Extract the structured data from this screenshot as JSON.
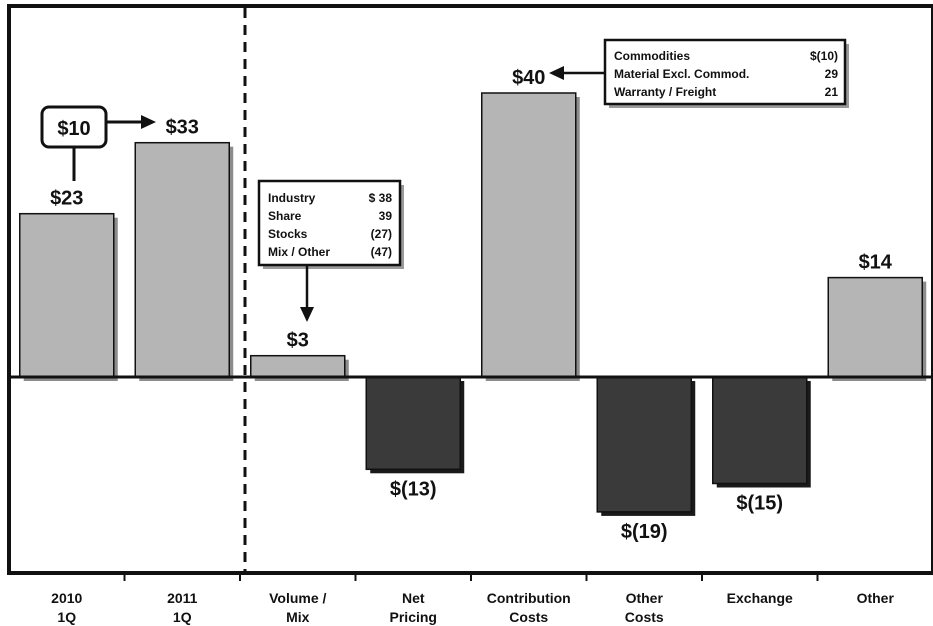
{
  "chart_data": {
    "type": "bar",
    "categories": [
      [
        "2010",
        "1Q"
      ],
      [
        "2011",
        "1Q"
      ],
      [
        "Volume /",
        "Mix"
      ],
      [
        "Net",
        "Pricing"
      ],
      [
        "Contribution",
        "Costs"
      ],
      [
        "Other",
        "Costs"
      ],
      [
        "Exchange"
      ],
      [
        "Other"
      ]
    ],
    "values": [
      23,
      33,
      3,
      -13,
      40,
      -19,
      -15,
      14
    ],
    "value_labels": [
      "$23",
      "$33",
      "$3",
      "$(13)",
      "$40",
      "$(19)",
      "$(15)",
      "$14"
    ],
    "colors": {
      "positive": "#b5b5b5",
      "negative": "#3a3a3a"
    },
    "grid": false,
    "legend": "none",
    "annotations": {
      "change": {
        "label": "$10"
      },
      "volume_mix_box": {
        "rows": [
          {
            "name": "Industry",
            "value": "$ 38"
          },
          {
            "name": "Share",
            "value": "39"
          },
          {
            "name": "Stocks",
            "value": "(27)"
          },
          {
            "name": "Mix / Other",
            "value": "(47)"
          }
        ]
      },
      "contribution_box": {
        "rows": [
          {
            "name": "Commodities",
            "value": "$(10)"
          },
          {
            "name": "Material Excl. Commod.",
            "value": "29"
          },
          {
            "name": "Warranty / Freight",
            "value": "21"
          }
        ]
      }
    }
  }
}
